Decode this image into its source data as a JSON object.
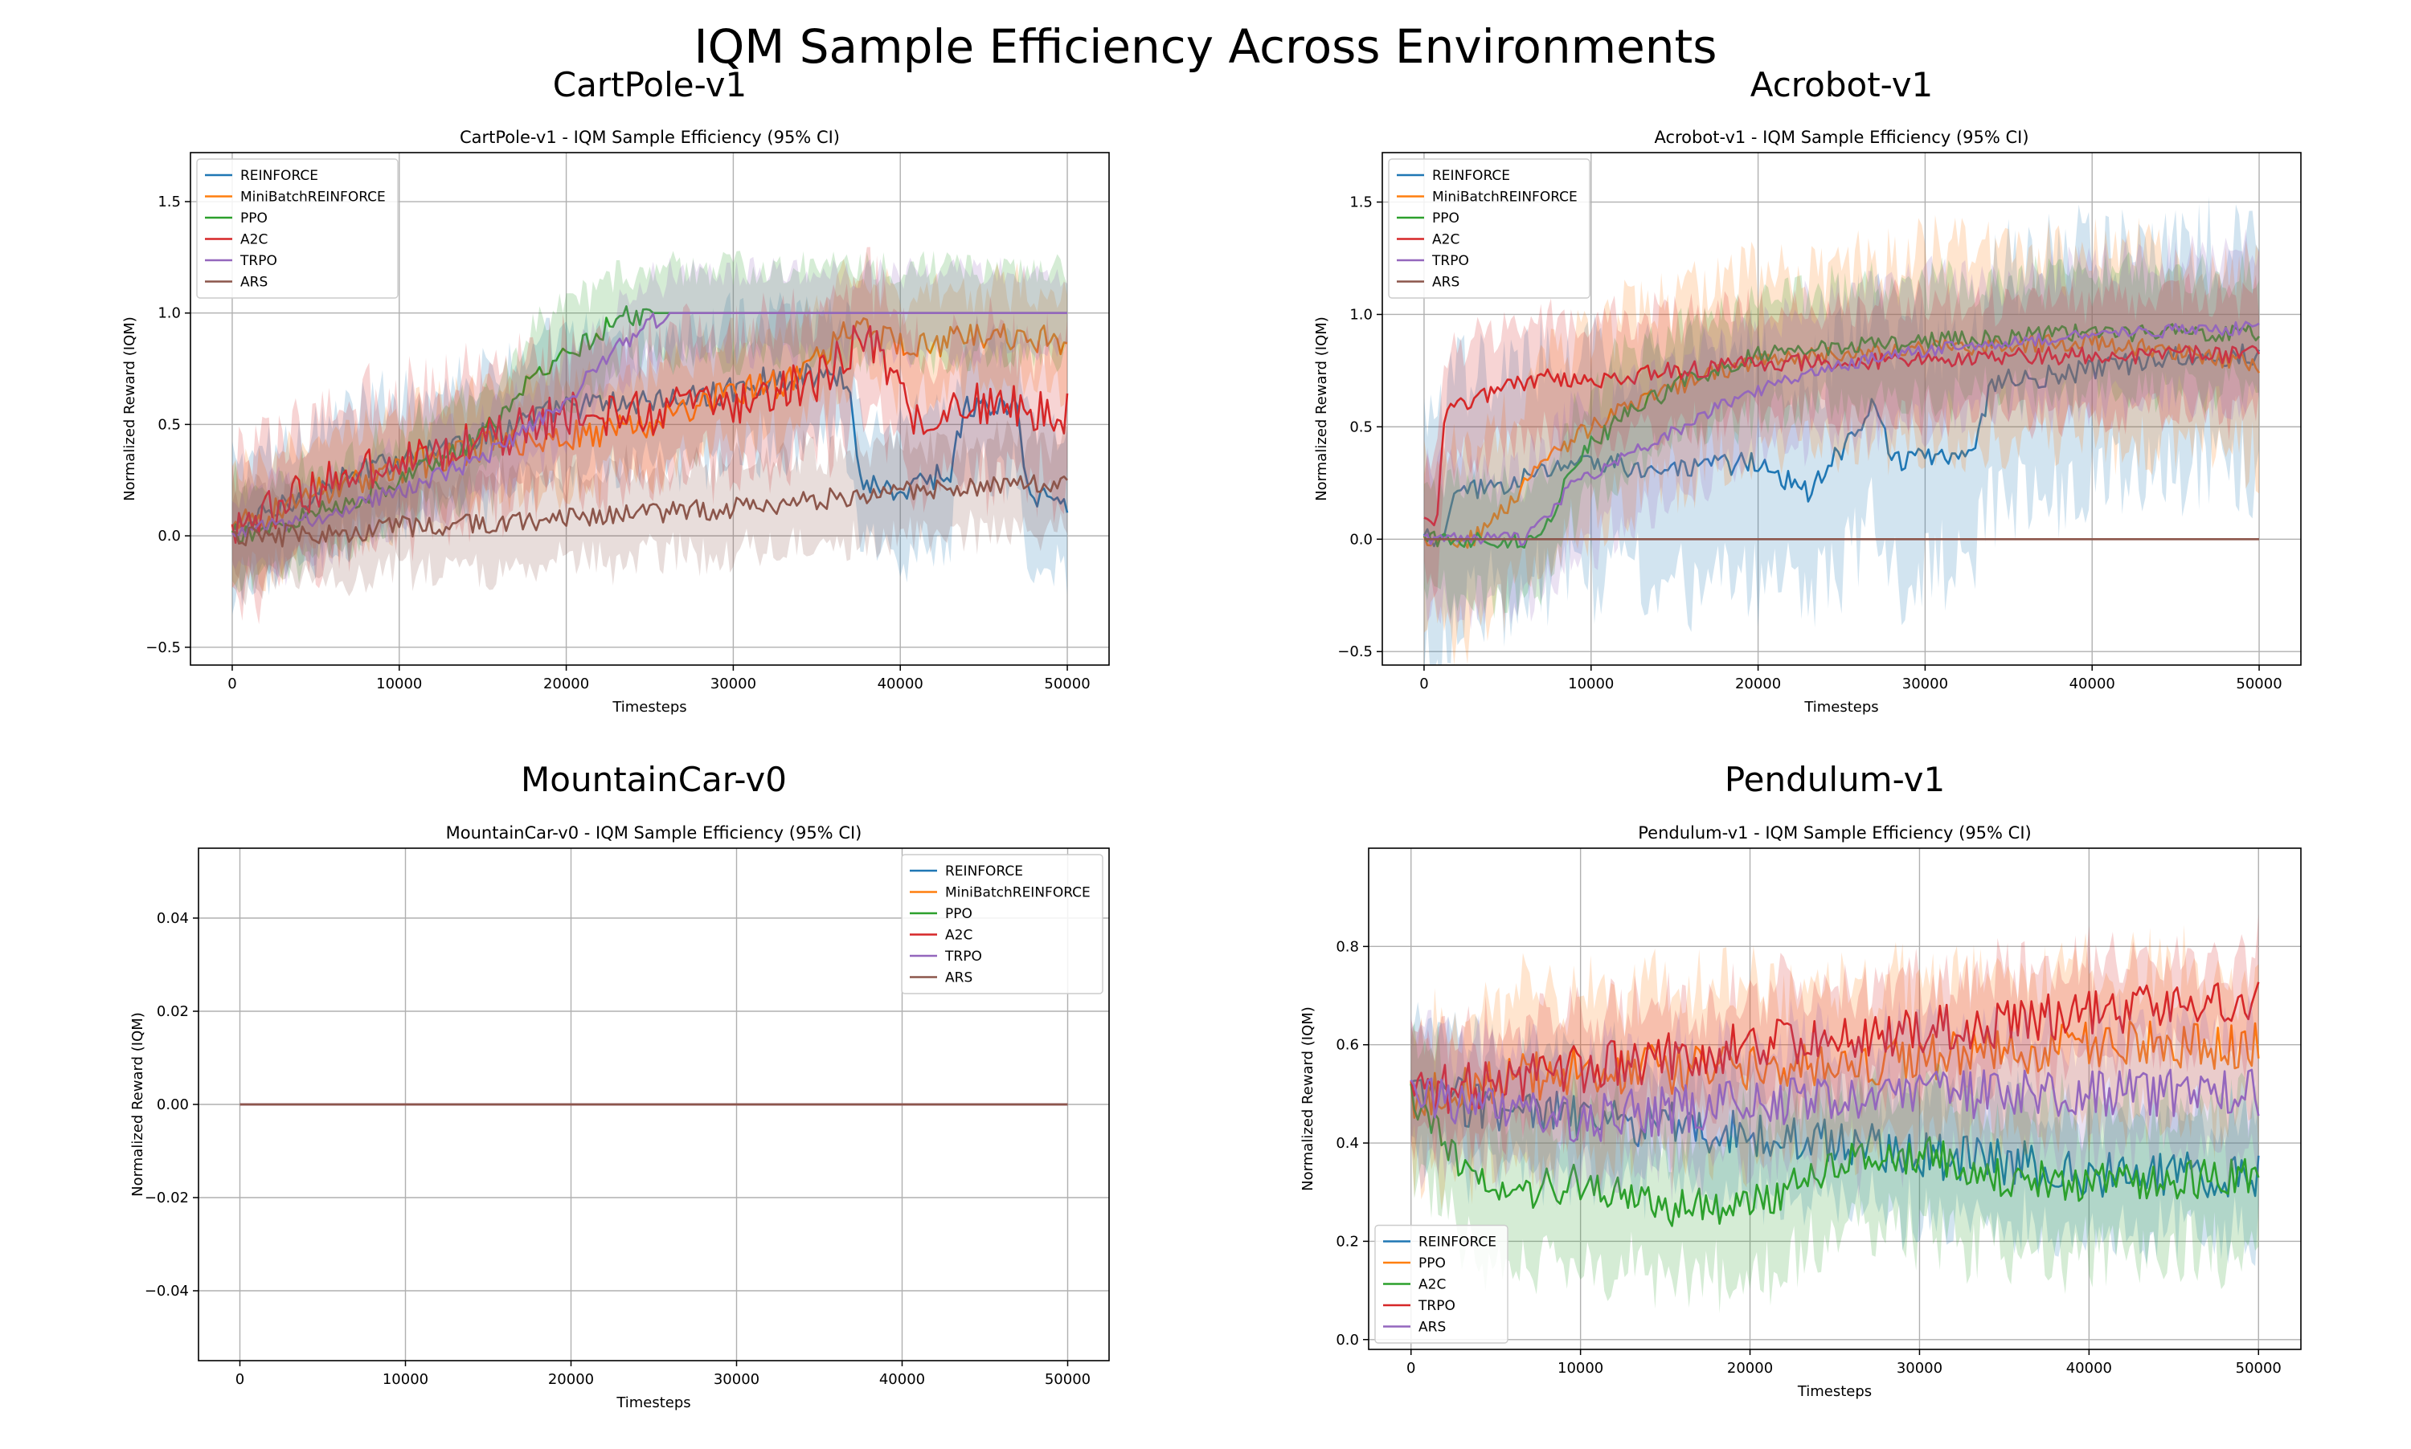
{
  "suptitle": "IQM Sample Efficiency Across Environments",
  "colors": {
    "REINFORCE": "#1f77b4",
    "MiniBatchREINFORCE": "#ff7f0e",
    "PPO": "#2ca02c",
    "A2C": "#d62728",
    "TRPO": "#9467bd",
    "ARS": "#8c564b",
    "grid": "#b0b0b0"
  },
  "chart_data": [
    {
      "type": "line",
      "env_title": "CartPole-v1",
      "title": "CartPole-v1 - IQM Sample Efficiency (95% CI)",
      "xlabel": "Timesteps",
      "ylabel": "Normalized Reward (IQM)",
      "xlim": [
        -2500,
        52500
      ],
      "ylim": [
        -0.58,
        1.72
      ],
      "xticks": [
        0,
        10000,
        20000,
        30000,
        40000,
        50000
      ],
      "xtick_labels": [
        "0",
        "10000",
        "20000",
        "30000",
        "40000",
        "50000"
      ],
      "yticks": [
        -0.5,
        0.0,
        0.5,
        1.0,
        1.5
      ],
      "ytick_labels": [
        "−0.5",
        "0.0",
        "0.5",
        "1.0",
        "1.5"
      ],
      "grid": true,
      "legend_position": "upper-left",
      "series": [
        {
          "name": "REINFORCE",
          "noise": 0.06,
          "band": 0.28,
          "points": [
            [
              0,
              0.02
            ],
            [
              5000,
              0.2
            ],
            [
              10000,
              0.35
            ],
            [
              15000,
              0.45
            ],
            [
              20000,
              0.58
            ],
            [
              24000,
              0.6
            ],
            [
              28000,
              0.62
            ],
            [
              32000,
              0.7
            ],
            [
              35000,
              0.72
            ],
            [
              37000,
              0.7
            ],
            [
              37500,
              0.25
            ],
            [
              40000,
              0.2
            ],
            [
              43000,
              0.3
            ],
            [
              44000,
              0.58
            ],
            [
              47000,
              0.58
            ],
            [
              47500,
              0.2
            ],
            [
              50000,
              0.15
            ]
          ]
        },
        {
          "name": "MiniBatchREINFORCE",
          "noise": 0.07,
          "band": 0.22,
          "points": [
            [
              0,
              0.02
            ],
            [
              5000,
              0.2
            ],
            [
              10000,
              0.3
            ],
            [
              15000,
              0.4
            ],
            [
              20000,
              0.45
            ],
            [
              25000,
              0.5
            ],
            [
              30000,
              0.65
            ],
            [
              34000,
              0.7
            ],
            [
              37000,
              0.95
            ],
            [
              40000,
              0.85
            ],
            [
              45000,
              0.9
            ],
            [
              50000,
              0.88
            ]
          ]
        },
        {
          "name": "PPO",
          "noise": 0.05,
          "band": 0.2,
          "points": [
            [
              0,
              0.0
            ],
            [
              5000,
              0.1
            ],
            [
              10000,
              0.25
            ],
            [
              15000,
              0.45
            ],
            [
              18000,
              0.7
            ],
            [
              21000,
              0.85
            ],
            [
              23000,
              0.98
            ],
            [
              25000,
              1.0
            ],
            [
              50000,
              1.0
            ]
          ]
        },
        {
          "name": "A2C",
          "noise": 0.1,
          "band": 0.3,
          "points": [
            [
              0,
              0.02
            ],
            [
              5000,
              0.22
            ],
            [
              10000,
              0.35
            ],
            [
              15000,
              0.42
            ],
            [
              20000,
              0.55
            ],
            [
              25000,
              0.55
            ],
            [
              30000,
              0.6
            ],
            [
              35000,
              0.7
            ],
            [
              38000,
              0.9
            ],
            [
              41000,
              0.5
            ],
            [
              45000,
              0.6
            ],
            [
              50000,
              0.55
            ]
          ]
        },
        {
          "name": "TRPO",
          "noise": 0.04,
          "band": 0.18,
          "points": [
            [
              0,
              0.0
            ],
            [
              5000,
              0.08
            ],
            [
              10000,
              0.2
            ],
            [
              15000,
              0.35
            ],
            [
              20000,
              0.6
            ],
            [
              23000,
              0.85
            ],
            [
              26000,
              1.0
            ],
            [
              50000,
              1.0
            ]
          ]
        },
        {
          "name": "ARS",
          "noise": 0.05,
          "band": 0.2,
          "points": [
            [
              0,
              0.0
            ],
            [
              5000,
              0.0
            ],
            [
              10000,
              0.04
            ],
            [
              20000,
              0.08
            ],
            [
              30000,
              0.12
            ],
            [
              40000,
              0.2
            ],
            [
              50000,
              0.25
            ]
          ]
        }
      ]
    },
    {
      "type": "line",
      "env_title": "Acrobot-v1",
      "title": "Acrobot-v1 - IQM Sample Efficiency (95% CI)",
      "xlabel": "Timesteps",
      "ylabel": "Normalized Reward (IQM)",
      "xlim": [
        -2500,
        52500
      ],
      "ylim": [
        -0.56,
        1.72
      ],
      "xticks": [
        0,
        10000,
        20000,
        30000,
        40000,
        50000
      ],
      "xtick_labels": [
        "0",
        "10000",
        "20000",
        "30000",
        "40000",
        "50000"
      ],
      "yticks": [
        -0.5,
        0.0,
        0.5,
        1.0,
        1.5
      ],
      "ytick_labels": [
        "−0.5",
        "0.0",
        "0.5",
        "1.0",
        "1.5"
      ],
      "grid": true,
      "legend_position": "upper-left",
      "series": [
        {
          "name": "REINFORCE",
          "noise": 0.05,
          "band": 0.5,
          "points": [
            [
              0,
              0.0
            ],
            [
              1000,
              0.0
            ],
            [
              2000,
              0.2
            ],
            [
              5000,
              0.25
            ],
            [
              10000,
              0.35
            ],
            [
              15000,
              0.3
            ],
            [
              20000,
              0.35
            ],
            [
              23000,
              0.2
            ],
            [
              25000,
              0.4
            ],
            [
              27000,
              0.6
            ],
            [
              28000,
              0.35
            ],
            [
              33000,
              0.4
            ],
            [
              34000,
              0.7
            ],
            [
              40000,
              0.75
            ],
            [
              45000,
              0.82
            ],
            [
              50000,
              0.82
            ]
          ]
        },
        {
          "name": "MiniBatchREINFORCE",
          "noise": 0.04,
          "band": 0.4,
          "points": [
            [
              0,
              0.0
            ],
            [
              3000,
              0.0
            ],
            [
              5000,
              0.15
            ],
            [
              8000,
              0.4
            ],
            [
              12000,
              0.6
            ],
            [
              16000,
              0.7
            ],
            [
              20000,
              0.8
            ],
            [
              30000,
              0.85
            ],
            [
              40000,
              0.88
            ],
            [
              50000,
              0.78
            ]
          ]
        },
        {
          "name": "PPO",
          "noise": 0.04,
          "band": 0.25,
          "points": [
            [
              0,
              0.0
            ],
            [
              5000,
              0.0
            ],
            [
              7000,
              0.0
            ],
            [
              9000,
              0.35
            ],
            [
              12000,
              0.55
            ],
            [
              16000,
              0.72
            ],
            [
              20000,
              0.82
            ],
            [
              30000,
              0.88
            ],
            [
              40000,
              0.92
            ],
            [
              50000,
              0.92
            ]
          ]
        },
        {
          "name": "A2C",
          "noise": 0.04,
          "band": 0.25,
          "points": [
            [
              0,
              0.08
            ],
            [
              800,
              0.08
            ],
            [
              1200,
              0.55
            ],
            [
              3000,
              0.62
            ],
            [
              7000,
              0.72
            ],
            [
              10000,
              0.7
            ],
            [
              15000,
              0.75
            ],
            [
              20000,
              0.78
            ],
            [
              30000,
              0.8
            ],
            [
              40000,
              0.82
            ],
            [
              50000,
              0.82
            ]
          ]
        },
        {
          "name": "TRPO",
          "noise": 0.03,
          "band": 0.3,
          "points": [
            [
              0,
              0.0
            ],
            [
              6000,
              0.0
            ],
            [
              9000,
              0.25
            ],
            [
              13000,
              0.4
            ],
            [
              18000,
              0.6
            ],
            [
              22000,
              0.72
            ],
            [
              28000,
              0.82
            ],
            [
              35000,
              0.88
            ],
            [
              42000,
              0.92
            ],
            [
              50000,
              0.94
            ]
          ]
        },
        {
          "name": "ARS",
          "noise": 0.0,
          "band": 0.0,
          "points": [
            [
              0,
              0.0
            ],
            [
              50000,
              0.0
            ]
          ]
        }
      ]
    },
    {
      "type": "line",
      "env_title": "MountainCar-v0",
      "title": "MountainCar-v0 - IQM Sample Efficiency (95% CI)",
      "xlabel": "Timesteps",
      "ylabel": "Normalized Reward (IQM)",
      "xlim": [
        -2500,
        52500
      ],
      "ylim": [
        -0.055,
        0.055
      ],
      "xticks": [
        0,
        10000,
        20000,
        30000,
        40000,
        50000
      ],
      "xtick_labels": [
        "0",
        "10000",
        "20000",
        "30000",
        "40000",
        "50000"
      ],
      "yticks": [
        -0.04,
        -0.02,
        0.0,
        0.02,
        0.04
      ],
      "ytick_labels": [
        "−0.04",
        "−0.02",
        "0.00",
        "0.02",
        "0.04"
      ],
      "grid": true,
      "legend_position": "upper-right",
      "series": [
        {
          "name": "REINFORCE",
          "noise": 0,
          "band": 0,
          "points": [
            [
              0,
              0.0
            ],
            [
              50000,
              0.0
            ]
          ]
        },
        {
          "name": "MiniBatchREINFORCE",
          "noise": 0,
          "band": 0,
          "points": [
            [
              0,
              0.0
            ],
            [
              50000,
              0.0
            ]
          ]
        },
        {
          "name": "PPO",
          "noise": 0,
          "band": 0,
          "points": [
            [
              0,
              0.0
            ],
            [
              50000,
              0.0
            ]
          ]
        },
        {
          "name": "A2C",
          "noise": 0,
          "band": 0,
          "points": [
            [
              0,
              0.0
            ],
            [
              50000,
              0.0
            ]
          ]
        },
        {
          "name": "TRPO",
          "noise": 0,
          "band": 0,
          "points": [
            [
              0,
              0.0
            ],
            [
              50000,
              0.0
            ]
          ]
        },
        {
          "name": "ARS",
          "noise": 0,
          "band": 0,
          "points": [
            [
              0,
              0.0
            ],
            [
              50000,
              0.0
            ]
          ]
        }
      ]
    },
    {
      "type": "line",
      "env_title": "Pendulum-v1",
      "title": "Pendulum-v1 - IQM Sample Efficiency (95% CI)",
      "xlabel": "Timesteps",
      "ylabel": "Normalized Reward (IQM)",
      "xlim": [
        -2500,
        52500
      ],
      "ylim": [
        -0.02,
        1.0
      ],
      "xticks": [
        0,
        10000,
        20000,
        30000,
        40000,
        50000
      ],
      "xtick_labels": [
        "0",
        "10000",
        "20000",
        "30000",
        "40000",
        "50000"
      ],
      "yticks": [
        0.0,
        0.2,
        0.4,
        0.6,
        0.8
      ],
      "ytick_labels": [
        "0.0",
        "0.2",
        "0.4",
        "0.6",
        "0.8"
      ],
      "grid": true,
      "legend_position": "lower-left",
      "series": [
        {
          "name": "REINFORCE",
          "color_key": "REINFORCE",
          "noise": 0.05,
          "band": 0.12,
          "points": [
            [
              0,
              0.5
            ],
            [
              10000,
              0.45
            ],
            [
              20000,
              0.42
            ],
            [
              30000,
              0.38
            ],
            [
              40000,
              0.34
            ],
            [
              50000,
              0.33
            ]
          ]
        },
        {
          "name": "PPO",
          "color_key": "MiniBatchREINFORCE",
          "noise": 0.05,
          "band": 0.15,
          "points": [
            [
              0,
              0.5
            ],
            [
              10000,
              0.55
            ],
            [
              20000,
              0.55
            ],
            [
              30000,
              0.57
            ],
            [
              40000,
              0.6
            ],
            [
              50000,
              0.6
            ]
          ]
        },
        {
          "name": "A2C",
          "color_key": "PPO",
          "noise": 0.04,
          "band": 0.15,
          "points": [
            [
              0,
              0.5
            ],
            [
              1500,
              0.42
            ],
            [
              3000,
              0.35
            ],
            [
              6000,
              0.3
            ],
            [
              10000,
              0.32
            ],
            [
              15000,
              0.27
            ],
            [
              20000,
              0.27
            ],
            [
              23000,
              0.32
            ],
            [
              26000,
              0.36
            ],
            [
              30000,
              0.38
            ],
            [
              35000,
              0.33
            ],
            [
              40000,
              0.32
            ],
            [
              50000,
              0.33
            ]
          ]
        },
        {
          "name": "TRPO",
          "color_key": "A2C",
          "noise": 0.05,
          "band": 0.1,
          "points": [
            [
              0,
              0.5
            ],
            [
              10000,
              0.55
            ],
            [
              20000,
              0.6
            ],
            [
              30000,
              0.63
            ],
            [
              40000,
              0.66
            ],
            [
              50000,
              0.7
            ]
          ]
        },
        {
          "name": "ARS",
          "color_key": "TRPO",
          "noise": 0.05,
          "band": 0.12,
          "points": [
            [
              0,
              0.5
            ],
            [
              10000,
              0.45
            ],
            [
              20000,
              0.48
            ],
            [
              30000,
              0.5
            ],
            [
              40000,
              0.5
            ],
            [
              50000,
              0.5
            ]
          ]
        }
      ]
    }
  ]
}
